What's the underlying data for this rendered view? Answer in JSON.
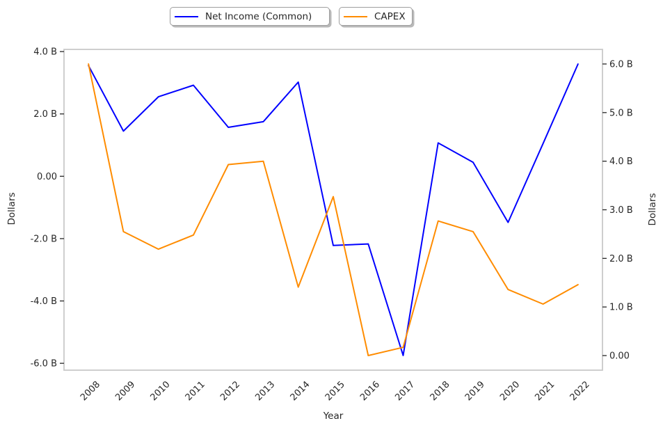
{
  "chart_data": {
    "type": "line",
    "title": "",
    "xlabel": "Year",
    "categories": [
      "2008",
      "2009",
      "2010",
      "2011",
      "2012",
      "2013",
      "2014",
      "2015",
      "2016",
      "2017",
      "2018",
      "2019",
      "2020",
      "2021",
      "2022"
    ],
    "series": [
      {
        "name": "Net Income (Common)",
        "color": "#0000ff",
        "axis": "left",
        "values": [
          3.55,
          1.45,
          2.55,
          2.92,
          1.57,
          1.75,
          3.02,
          -2.22,
          -2.17,
          -5.75,
          1.07,
          0.45,
          -1.48,
          1.05,
          3.6
        ]
      },
      {
        "name": "CAPEX",
        "color": "#ff8c00",
        "axis": "right",
        "values": [
          6.0,
          2.55,
          2.19,
          2.48,
          3.93,
          4.0,
          1.41,
          3.27,
          0.0,
          0.17,
          2.77,
          2.55,
          1.36,
          1.06,
          1.46
        ]
      }
    ],
    "left_axis": {
      "label": "Dollars",
      "lim": [
        -6.22,
        4.07
      ],
      "tick_values": [
        4,
        2,
        0,
        -2,
        -4,
        -6
      ],
      "tick_labels": [
        "4.0 B",
        "2.0 B",
        "0.00",
        "-2.0 B",
        "-4.0 B",
        "-6.0 B"
      ]
    },
    "right_axis": {
      "label": "Dollars",
      "lim": [
        -0.3,
        6.3
      ],
      "tick_values": [
        6,
        5,
        4,
        3,
        2,
        1,
        0
      ],
      "tick_labels": [
        "6.0 B",
        "5.0 B",
        "4.0 B",
        "3.0 B",
        "2.0 B",
        "1.0 B",
        "0.00"
      ]
    },
    "x_axis": {
      "lim": [
        2007.3,
        2022.7
      ]
    },
    "legend": {
      "position": "top",
      "entries": [
        "Net Income (Common)",
        "CAPEX"
      ]
    },
    "grid": false,
    "colors": {
      "spine": "#c9c9c9",
      "tick": "#262626",
      "text": "#262626"
    }
  }
}
